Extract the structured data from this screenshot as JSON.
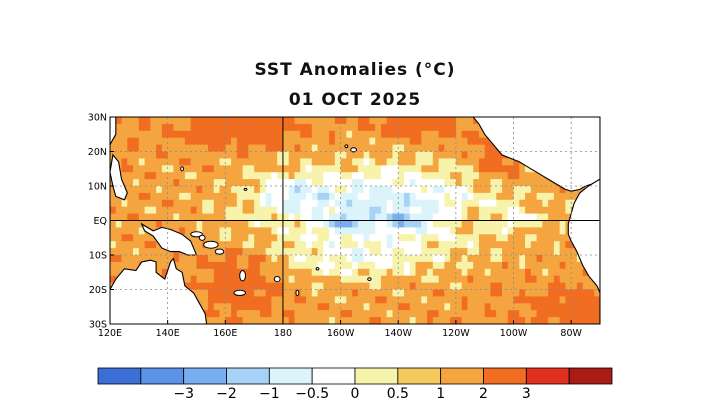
{
  "title": "SST Anomalies (°C)",
  "date": "01 OCT 2025",
  "map": {
    "lon_range": [
      120,
      290
    ],
    "lat_range": [
      -30,
      30
    ],
    "lat_ticks": [
      {
        "lat": 30,
        "label": "30N"
      },
      {
        "lat": 20,
        "label": "20N"
      },
      {
        "lat": 10,
        "label": "10N"
      },
      {
        "lat": 0,
        "label": "EQ"
      },
      {
        "lat": -10,
        "label": "10S"
      },
      {
        "lat": -20,
        "label": "20S"
      },
      {
        "lat": -30,
        "label": "30S"
      }
    ],
    "lon_ticks": [
      {
        "lon": 120,
        "label": "120E"
      },
      {
        "lon": 140,
        "label": "140E"
      },
      {
        "lon": 160,
        "label": "160E"
      },
      {
        "lon": 180,
        "label": "180"
      },
      {
        "lon": 200,
        "label": "160W"
      },
      {
        "lon": 220,
        "label": "140W"
      },
      {
        "lon": 240,
        "label": "120W"
      },
      {
        "lon": 260,
        "label": "100W"
      },
      {
        "lon": 280,
        "label": "80W"
      }
    ],
    "bin_colors": [
      "#3c6fd6",
      "#5b93e6",
      "#77aff0",
      "#a8d2f5",
      "#dbf4fb",
      "#ffffff",
      "#f7f3ab",
      "#f3c960",
      "#f5a540",
      "#f06d22",
      "#e12f1d",
      "#a81c15"
    ],
    "land_color": "#ffffff",
    "coast_color": "#000000",
    "grid_color": "#888888"
  },
  "colorbar": {
    "colors": [
      "#3c6fd6",
      "#5b93e6",
      "#77aff0",
      "#a8d2f5",
      "#dbf4fb",
      "#ffffff",
      "#f7f3ab",
      "#f3c960",
      "#f5a540",
      "#f06d22",
      "#e12f1d",
      "#a81c15"
    ],
    "labels": [
      "−3",
      "−2",
      "−1",
      "−0.5",
      "0",
      "0.5",
      "1",
      "2",
      "3"
    ]
  }
}
